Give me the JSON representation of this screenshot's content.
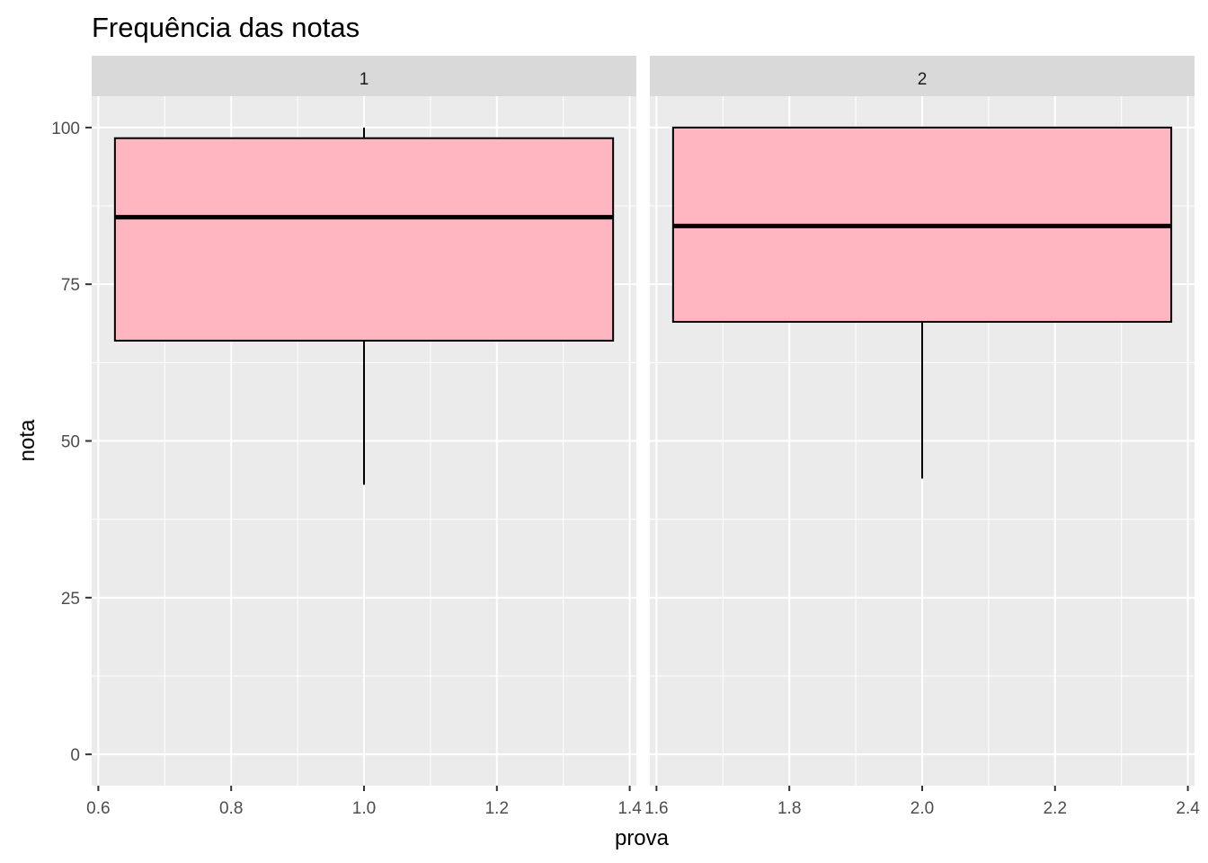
{
  "chart_data": {
    "type": "boxplot",
    "title": "Frequência das notas",
    "xlabel": "prova",
    "ylabel": "nota",
    "ylim": [
      -5,
      105
    ],
    "yticks": [
      0,
      25,
      50,
      75,
      100
    ],
    "grid": true,
    "facets": [
      {
        "label": "1",
        "xlim": [
          0.59,
          1.41
        ],
        "xticks": [
          0.6,
          0.8,
          1.0,
          1.2,
          1.4
        ],
        "xtick_labels": [
          "0.6",
          "0.8",
          "1.0",
          "1.2",
          "1.4"
        ],
        "box": {
          "x": 1.0,
          "x_from": 0.625,
          "x_to": 1.375,
          "min": 43,
          "q1": 66,
          "median": 85.7,
          "q3": 98.3,
          "max": 100
        }
      },
      {
        "label": "2",
        "xlim": [
          1.59,
          2.41
        ],
        "xticks": [
          1.6,
          1.8,
          2.0,
          2.2,
          2.4
        ],
        "xtick_labels": [
          "1.6",
          "1.8",
          "2.0",
          "2.2",
          "2.4"
        ],
        "box": {
          "x": 2.0,
          "x_from": 1.625,
          "x_to": 2.375,
          "min": 44,
          "q1": 69,
          "median": 84.3,
          "q3": 100,
          "max": 100
        }
      }
    ],
    "colors": {
      "panel_bg": "#ebebeb",
      "strip_bg": "#d9d9d9",
      "grid": "#ffffff",
      "box_fill": "#ffb6c1",
      "box_line": "#000000"
    }
  }
}
